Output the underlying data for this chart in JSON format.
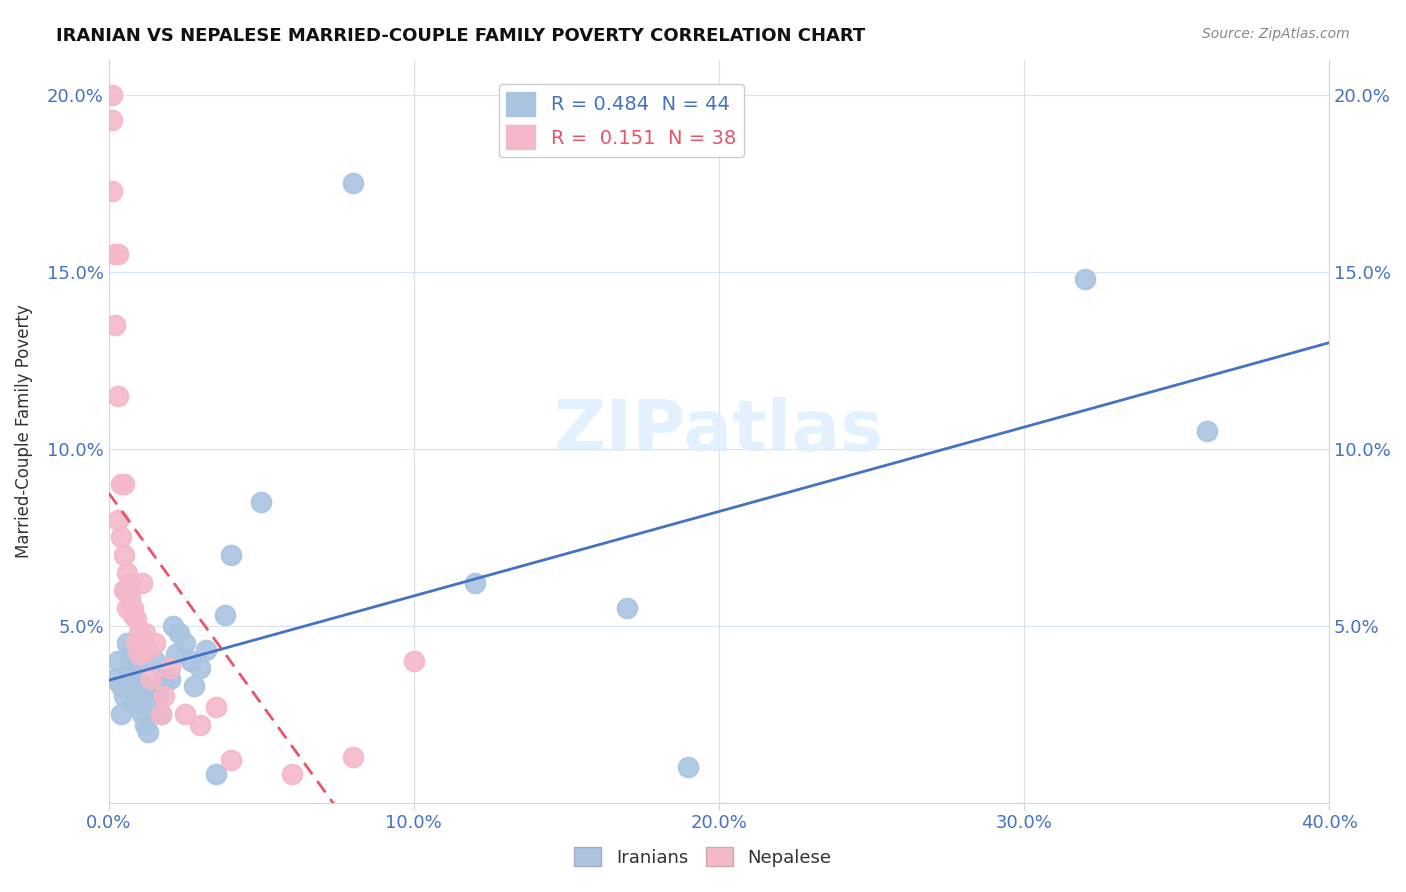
{
  "title": "IRANIAN VS NEPALESE MARRIED-COUPLE FAMILY POVERTY CORRELATION CHART",
  "source": "Source: ZipAtlas.com",
  "ylabel": "Married-Couple Family Poverty",
  "xlabel": "",
  "watermark": "ZIPatlas",
  "xmin": 0.0,
  "xmax": 0.4,
  "ymin": 0.0,
  "ymax": 0.21,
  "xticks": [
    0.0,
    0.1,
    0.2,
    0.3,
    0.4
  ],
  "yticks": [
    0.0,
    0.05,
    0.1,
    0.15,
    0.2
  ],
  "ytick_labels": [
    "",
    "5.0%",
    "10.0%",
    "15.0%",
    "20.0%"
  ],
  "xtick_labels": [
    "0.0%",
    "10.0%",
    "20.0%",
    "30.0%",
    "40.0%"
  ],
  "iranians_color": "#aac4e0",
  "nepalese_color": "#f4b8c8",
  "iranians_R": 0.484,
  "iranians_N": 44,
  "nepalese_R": 0.151,
  "nepalese_N": 38,
  "iranians_line_color": "#4472c4",
  "nepalese_line_color": "#e8546a",
  "nepalese_dashed_color": "#ccaaaa",
  "iranians_x": [
    0.002,
    0.003,
    0.004,
    0.004,
    0.005,
    0.006,
    0.006,
    0.007,
    0.007,
    0.008,
    0.008,
    0.009,
    0.01,
    0.01,
    0.011,
    0.011,
    0.012,
    0.012,
    0.013,
    0.014,
    0.015,
    0.015,
    0.016,
    0.017,
    0.018,
    0.02,
    0.021,
    0.022,
    0.023,
    0.025,
    0.027,
    0.028,
    0.03,
    0.032,
    0.035,
    0.038,
    0.04,
    0.05,
    0.08,
    0.12,
    0.17,
    0.19,
    0.32,
    0.36
  ],
  "iranians_y": [
    0.035,
    0.04,
    0.025,
    0.033,
    0.03,
    0.045,
    0.06,
    0.037,
    0.042,
    0.028,
    0.032,
    0.038,
    0.028,
    0.033,
    0.025,
    0.03,
    0.022,
    0.033,
    0.02,
    0.025,
    0.04,
    0.032,
    0.03,
    0.025,
    0.035,
    0.035,
    0.05,
    0.042,
    0.048,
    0.045,
    0.04,
    0.033,
    0.038,
    0.043,
    0.008,
    0.053,
    0.07,
    0.085,
    0.175,
    0.062,
    0.055,
    0.01,
    0.148,
    0.105
  ],
  "nepalese_x": [
    0.001,
    0.001,
    0.001,
    0.002,
    0.002,
    0.003,
    0.003,
    0.003,
    0.004,
    0.004,
    0.005,
    0.005,
    0.005,
    0.006,
    0.006,
    0.007,
    0.007,
    0.008,
    0.008,
    0.009,
    0.009,
    0.01,
    0.01,
    0.011,
    0.012,
    0.013,
    0.014,
    0.015,
    0.017,
    0.018,
    0.02,
    0.025,
    0.03,
    0.035,
    0.04,
    0.06,
    0.08,
    0.1
  ],
  "nepalese_y": [
    0.2,
    0.193,
    0.173,
    0.155,
    0.135,
    0.155,
    0.115,
    0.08,
    0.09,
    0.075,
    0.09,
    0.07,
    0.06,
    0.065,
    0.055,
    0.062,
    0.058,
    0.055,
    0.053,
    0.052,
    0.045,
    0.048,
    0.042,
    0.062,
    0.048,
    0.043,
    0.035,
    0.045,
    0.025,
    0.03,
    0.038,
    0.025,
    0.022,
    0.027,
    0.012,
    0.008,
    0.013,
    0.04
  ]
}
